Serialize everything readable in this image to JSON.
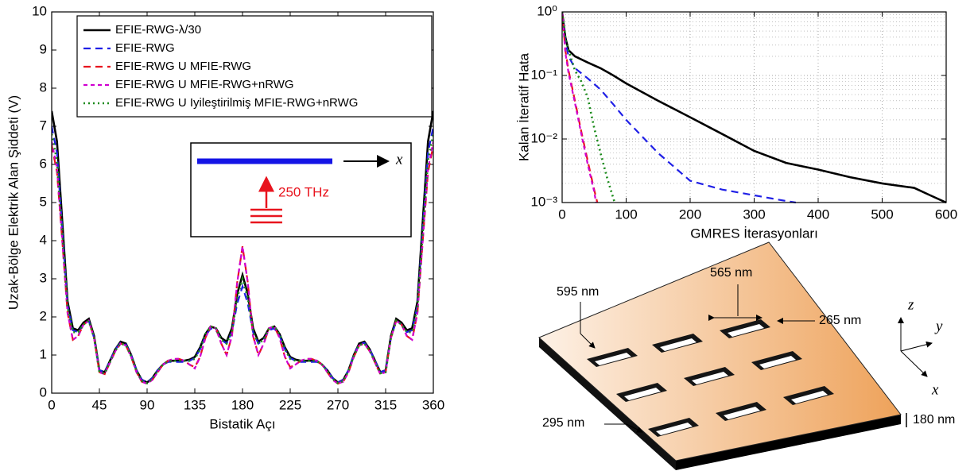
{
  "chart_data": [
    {
      "type": "line",
      "xlabel": "Bistatik Açı",
      "ylabel": "Uzak-Bölge Elektrik Alan Şiddeti (V)",
      "xlim": [
        0,
        360
      ],
      "xticks": [
        0,
        45,
        90,
        135,
        180,
        225,
        270,
        315,
        360
      ],
      "ylim": [
        0,
        10
      ],
      "yticks": [
        0,
        1,
        2,
        3,
        4,
        5,
        6,
        7,
        8,
        9,
        10
      ],
      "grid": false,
      "legend": "upper left",
      "inset": {
        "axis": "x",
        "frequency": "250 THz"
      },
      "x": [
        0,
        5,
        10,
        15,
        20,
        25,
        30,
        35,
        40,
        45,
        50,
        55,
        60,
        65,
        70,
        75,
        80,
        85,
        90,
        95,
        100,
        105,
        110,
        115,
        120,
        125,
        130,
        135,
        140,
        145,
        150,
        155,
        160,
        165,
        170,
        175,
        180,
        185,
        190,
        195,
        200,
        205,
        210,
        215,
        220,
        225,
        230,
        235,
        240,
        245,
        250,
        255,
        260,
        265,
        270,
        275,
        280,
        285,
        290,
        295,
        300,
        305,
        310,
        315,
        320,
        325,
        330,
        335,
        340,
        345,
        350,
        355,
        360
      ],
      "series": [
        {
          "name": "EFIE-RWG-λ/30",
          "color": "#000000",
          "linestyle": "solid",
          "values": [
            7.4,
            6.6,
            4.5,
            2.4,
            1.7,
            1.65,
            1.85,
            1.95,
            1.5,
            0.6,
            0.55,
            0.85,
            1.15,
            1.35,
            1.3,
            1,
            0.6,
            0.35,
            0.28,
            0.4,
            0.6,
            0.75,
            0.85,
            0.85,
            0.85,
            0.85,
            0.88,
            0.95,
            1.2,
            1.55,
            1.75,
            1.7,
            1.45,
            1.35,
            1.7,
            2.6,
            3.1,
            2.6,
            1.7,
            1.35,
            1.45,
            1.7,
            1.75,
            1.55,
            1.2,
            0.95,
            0.88,
            0.85,
            0.85,
            0.85,
            0.85,
            0.75,
            0.6,
            0.4,
            0.28,
            0.35,
            0.6,
            1,
            1.3,
            1.35,
            1.15,
            0.85,
            0.55,
            0.6,
            1.5,
            1.95,
            1.85,
            1.65,
            1.7,
            2.4,
            4.5,
            6.6,
            7.4
          ]
        },
        {
          "name": "EFIE-RWG",
          "color": "#1f1fe6",
          "linestyle": "dashed",
          "values": [
            7,
            6.3,
            4.3,
            2.3,
            1.65,
            1.6,
            1.8,
            1.9,
            1.45,
            0.6,
            0.55,
            0.85,
            1.15,
            1.32,
            1.28,
            1,
            0.6,
            0.35,
            0.28,
            0.4,
            0.6,
            0.75,
            0.82,
            0.82,
            0.82,
            0.82,
            0.85,
            0.92,
            1.15,
            1.5,
            1.7,
            1.65,
            1.4,
            1.3,
            1.6,
            2.35,
            2.8,
            2.35,
            1.6,
            1.3,
            1.4,
            1.65,
            1.7,
            1.5,
            1.15,
            0.92,
            0.85,
            0.82,
            0.82,
            0.82,
            0.82,
            0.75,
            0.6,
            0.4,
            0.28,
            0.35,
            0.6,
            1,
            1.28,
            1.32,
            1.15,
            0.85,
            0.55,
            0.6,
            1.45,
            1.9,
            1.8,
            1.6,
            1.65,
            2.3,
            4.3,
            6.3,
            7
          ]
        },
        {
          "name": "EFIE-RWG U MFIE-RWG",
          "color": "#e8141e",
          "linestyle": "dashed",
          "values": [
            6.5,
            5.8,
            4,
            2.1,
            1.4,
            1.5,
            1.8,
            1.9,
            1.45,
            0.55,
            0.5,
            0.8,
            1.1,
            1.3,
            1.25,
            0.95,
            0.55,
            0.3,
            0.25,
            0.35,
            0.55,
            0.75,
            0.85,
            0.9,
            0.9,
            0.85,
            0.75,
            0.68,
            0.95,
            1.45,
            1.75,
            1.7,
            1.3,
            1,
            1.5,
            2.9,
            3.85,
            2.9,
            1.5,
            1,
            1.3,
            1.7,
            1.75,
            1.45,
            0.95,
            0.68,
            0.75,
            0.85,
            0.9,
            0.9,
            0.85,
            0.75,
            0.55,
            0.35,
            0.25,
            0.3,
            0.55,
            0.95,
            1.25,
            1.3,
            1.1,
            0.8,
            0.5,
            0.55,
            1.45,
            1.9,
            1.8,
            1.5,
            1.4,
            2.1,
            4,
            5.8,
            6.5
          ]
        },
        {
          "name": "EFIE-RWG U MFIE-RWG+nRWG",
          "color": "#d000d0",
          "linestyle": "shortdash",
          "values": [
            6.6,
            5.9,
            4,
            2.1,
            1.4,
            1.5,
            1.8,
            1.9,
            1.45,
            0.55,
            0.5,
            0.8,
            1.1,
            1.3,
            1.25,
            0.95,
            0.55,
            0.3,
            0.25,
            0.35,
            0.55,
            0.75,
            0.85,
            0.9,
            0.9,
            0.85,
            0.75,
            0.65,
            0.95,
            1.45,
            1.75,
            1.7,
            1.3,
            1,
            1.5,
            2.9,
            3.85,
            2.9,
            1.5,
            1,
            1.3,
            1.7,
            1.75,
            1.45,
            0.95,
            0.65,
            0.75,
            0.85,
            0.9,
            0.9,
            0.85,
            0.75,
            0.55,
            0.35,
            0.25,
            0.3,
            0.55,
            0.95,
            1.25,
            1.3,
            1.1,
            0.8,
            0.5,
            0.55,
            1.45,
            1.9,
            1.8,
            1.5,
            1.4,
            2.1,
            4,
            5.9,
            6.6
          ]
        },
        {
          "name": "EFIE-RWG U Iyileştirilmiş MFIE-RWG+nRWG",
          "color": "#1a8a1a",
          "linestyle": "dotted",
          "values": [
            6.8,
            6.1,
            4.2,
            2.25,
            1.6,
            1.6,
            1.8,
            1.9,
            1.45,
            0.55,
            0.52,
            0.82,
            1.12,
            1.3,
            1.26,
            0.97,
            0.58,
            0.32,
            0.26,
            0.38,
            0.58,
            0.75,
            0.84,
            0.85,
            0.85,
            0.85,
            0.85,
            0.9,
            1.15,
            1.55,
            1.75,
            1.7,
            1.4,
            1.3,
            1.6,
            2.5,
            3,
            2.5,
            1.6,
            1.3,
            1.4,
            1.7,
            1.75,
            1.55,
            1.15,
            0.9,
            0.85,
            0.85,
            0.85,
            0.85,
            0.84,
            0.75,
            0.58,
            0.38,
            0.26,
            0.32,
            0.58,
            0.97,
            1.26,
            1.3,
            1.12,
            0.82,
            0.52,
            0.55,
            1.45,
            1.9,
            1.8,
            1.6,
            1.6,
            2.25,
            4.2,
            6.1,
            6.8
          ]
        }
      ]
    },
    {
      "type": "line",
      "xlabel": "GMRES İterasyonları",
      "ylabel": "Kalan İteratif Hata",
      "xlim": [
        0,
        600
      ],
      "xticks": [
        0,
        100,
        200,
        300,
        400,
        500,
        600
      ],
      "ylim": [
        0.001,
        1
      ],
      "ylog": true,
      "yticks": [
        {
          "value": 0.001,
          "label": "10⁻³"
        },
        {
          "value": 0.01,
          "label": "10⁻²"
        },
        {
          "value": 0.1,
          "label": "10⁻¹"
        },
        {
          "value": 1,
          "label": "10⁰"
        }
      ],
      "grid": true,
      "series": [
        {
          "color": "#000000",
          "linestyle": "solid",
          "x": [
            0,
            5,
            10,
            20,
            40,
            60,
            80,
            100,
            150,
            200,
            250,
            300,
            350,
            400,
            450,
            500,
            550,
            575,
            600
          ],
          "values": [
            1,
            0.4,
            0.25,
            0.2,
            0.16,
            0.13,
            0.1,
            0.075,
            0.04,
            0.022,
            0.012,
            0.0065,
            0.0042,
            0.0033,
            0.0025,
            0.002,
            0.0017,
            0.0013,
            0.001
          ]
        },
        {
          "color": "#1f1fe6",
          "linestyle": "dashed",
          "x": [
            0,
            5,
            10,
            20,
            40,
            60,
            80,
            100,
            150,
            200,
            250,
            300,
            340,
            365
          ],
          "values": [
            1,
            0.35,
            0.2,
            0.13,
            0.09,
            0.06,
            0.035,
            0.02,
            0.006,
            0.0022,
            0.0016,
            0.0013,
            0.0011,
            0.001
          ]
        },
        {
          "color": "#e8141e",
          "linestyle": "dashed",
          "x": [
            0,
            5,
            10,
            20,
            30,
            40,
            50,
            55
          ],
          "values": [
            1,
            0.25,
            0.12,
            0.04,
            0.013,
            0.0045,
            0.0016,
            0.001
          ]
        },
        {
          "color": "#d000d0",
          "linestyle": "shortdash",
          "x": [
            0,
            5,
            10,
            20,
            30,
            40,
            50,
            53
          ],
          "values": [
            1,
            0.23,
            0.11,
            0.037,
            0.012,
            0.004,
            0.0015,
            0.001
          ]
        },
        {
          "color": "#1a8a1a",
          "linestyle": "dotted",
          "x": [
            0,
            5,
            10,
            20,
            30,
            40,
            50,
            60,
            70,
            82
          ],
          "values": [
            1,
            0.4,
            0.25,
            0.12,
            0.08,
            0.045,
            0.015,
            0.006,
            0.0025,
            0.001
          ]
        }
      ]
    }
  ],
  "diagram": {
    "hole_length": "595 nm",
    "hole_spacing": "565 nm",
    "hole_width": "265 nm",
    "row_spacing": "295 nm",
    "thickness": "180 nm",
    "axes": {
      "z": "z",
      "y": "y",
      "x": "x"
    }
  }
}
